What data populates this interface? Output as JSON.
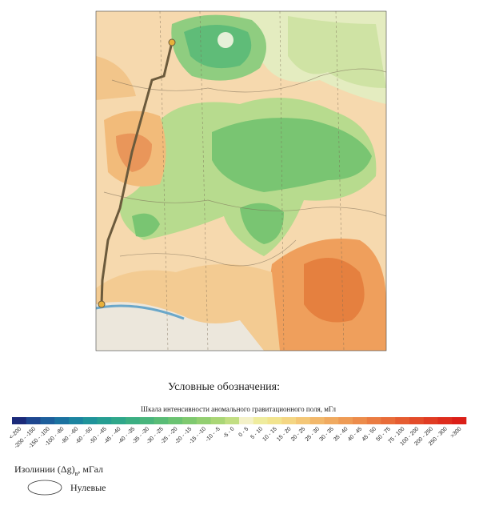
{
  "legend": {
    "title": "Условные обозначения:",
    "scale_title": "Шкала интенсивности аномального гравитационного поля, мГл",
    "scale": [
      {
        "label": "<-200",
        "color": "#1b2a7a"
      },
      {
        "label": "-200 - -150",
        "color": "#1e4790"
      },
      {
        "label": "-150 - -100",
        "color": "#1d5f9c"
      },
      {
        "label": "-100 - -80",
        "color": "#1b72a0"
      },
      {
        "label": "-80 - -60",
        "color": "#1c84a0"
      },
      {
        "label": "-60 - -50",
        "color": "#1f939a"
      },
      {
        "label": "-50 - -45",
        "color": "#269e92"
      },
      {
        "label": "-45 - -40",
        "color": "#2fa78a"
      },
      {
        "label": "-40 - -35",
        "color": "#3bae82"
      },
      {
        "label": "-35 - -30",
        "color": "#49b57c"
      },
      {
        "label": "-30 - -25",
        "color": "#59bc76"
      },
      {
        "label": "-25 - -20",
        "color": "#6bc372"
      },
      {
        "label": "-20 - -15",
        "color": "#7fc96f"
      },
      {
        "label": "-15 - -10",
        "color": "#93cf71"
      },
      {
        "label": "-10 - -5",
        "color": "#aad676"
      },
      {
        "label": "-5 - 0",
        "color": "#c2de82"
      },
      {
        "label": "0 - 5",
        "color": "#f4f1c8"
      },
      {
        "label": "5 - 10",
        "color": "#efec9e"
      },
      {
        "label": "10 - 15",
        "color": "#f2e48f"
      },
      {
        "label": "15 - 20",
        "color": "#f4d683"
      },
      {
        "label": "20 - 25",
        "color": "#f4c777"
      },
      {
        "label": "25 - 30",
        "color": "#f2b86b"
      },
      {
        "label": "30 - 35",
        "color": "#f0aa60"
      },
      {
        "label": "35 - 40",
        "color": "#ee9b55"
      },
      {
        "label": "40 - 45",
        "color": "#ec8c4b"
      },
      {
        "label": "45 - 50",
        "color": "#ea7c42"
      },
      {
        "label": "50 - 75",
        "color": "#e86c39"
      },
      {
        "label": "75 - 100",
        "color": "#e55c31"
      },
      {
        "label": "100 - 200",
        "color": "#e34c2a"
      },
      {
        "label": "200 - 250",
        "color": "#e03c23"
      },
      {
        "label": "250 - 300",
        "color": "#de2d1d"
      },
      {
        "label": ">300",
        "color": "#db1f18"
      }
    ],
    "isolines_title": "Изолинии (Δg)",
    "isolines_subscript": "в",
    "isolines_unit": ", мГал",
    "zero_label": "Нулевые"
  }
}
